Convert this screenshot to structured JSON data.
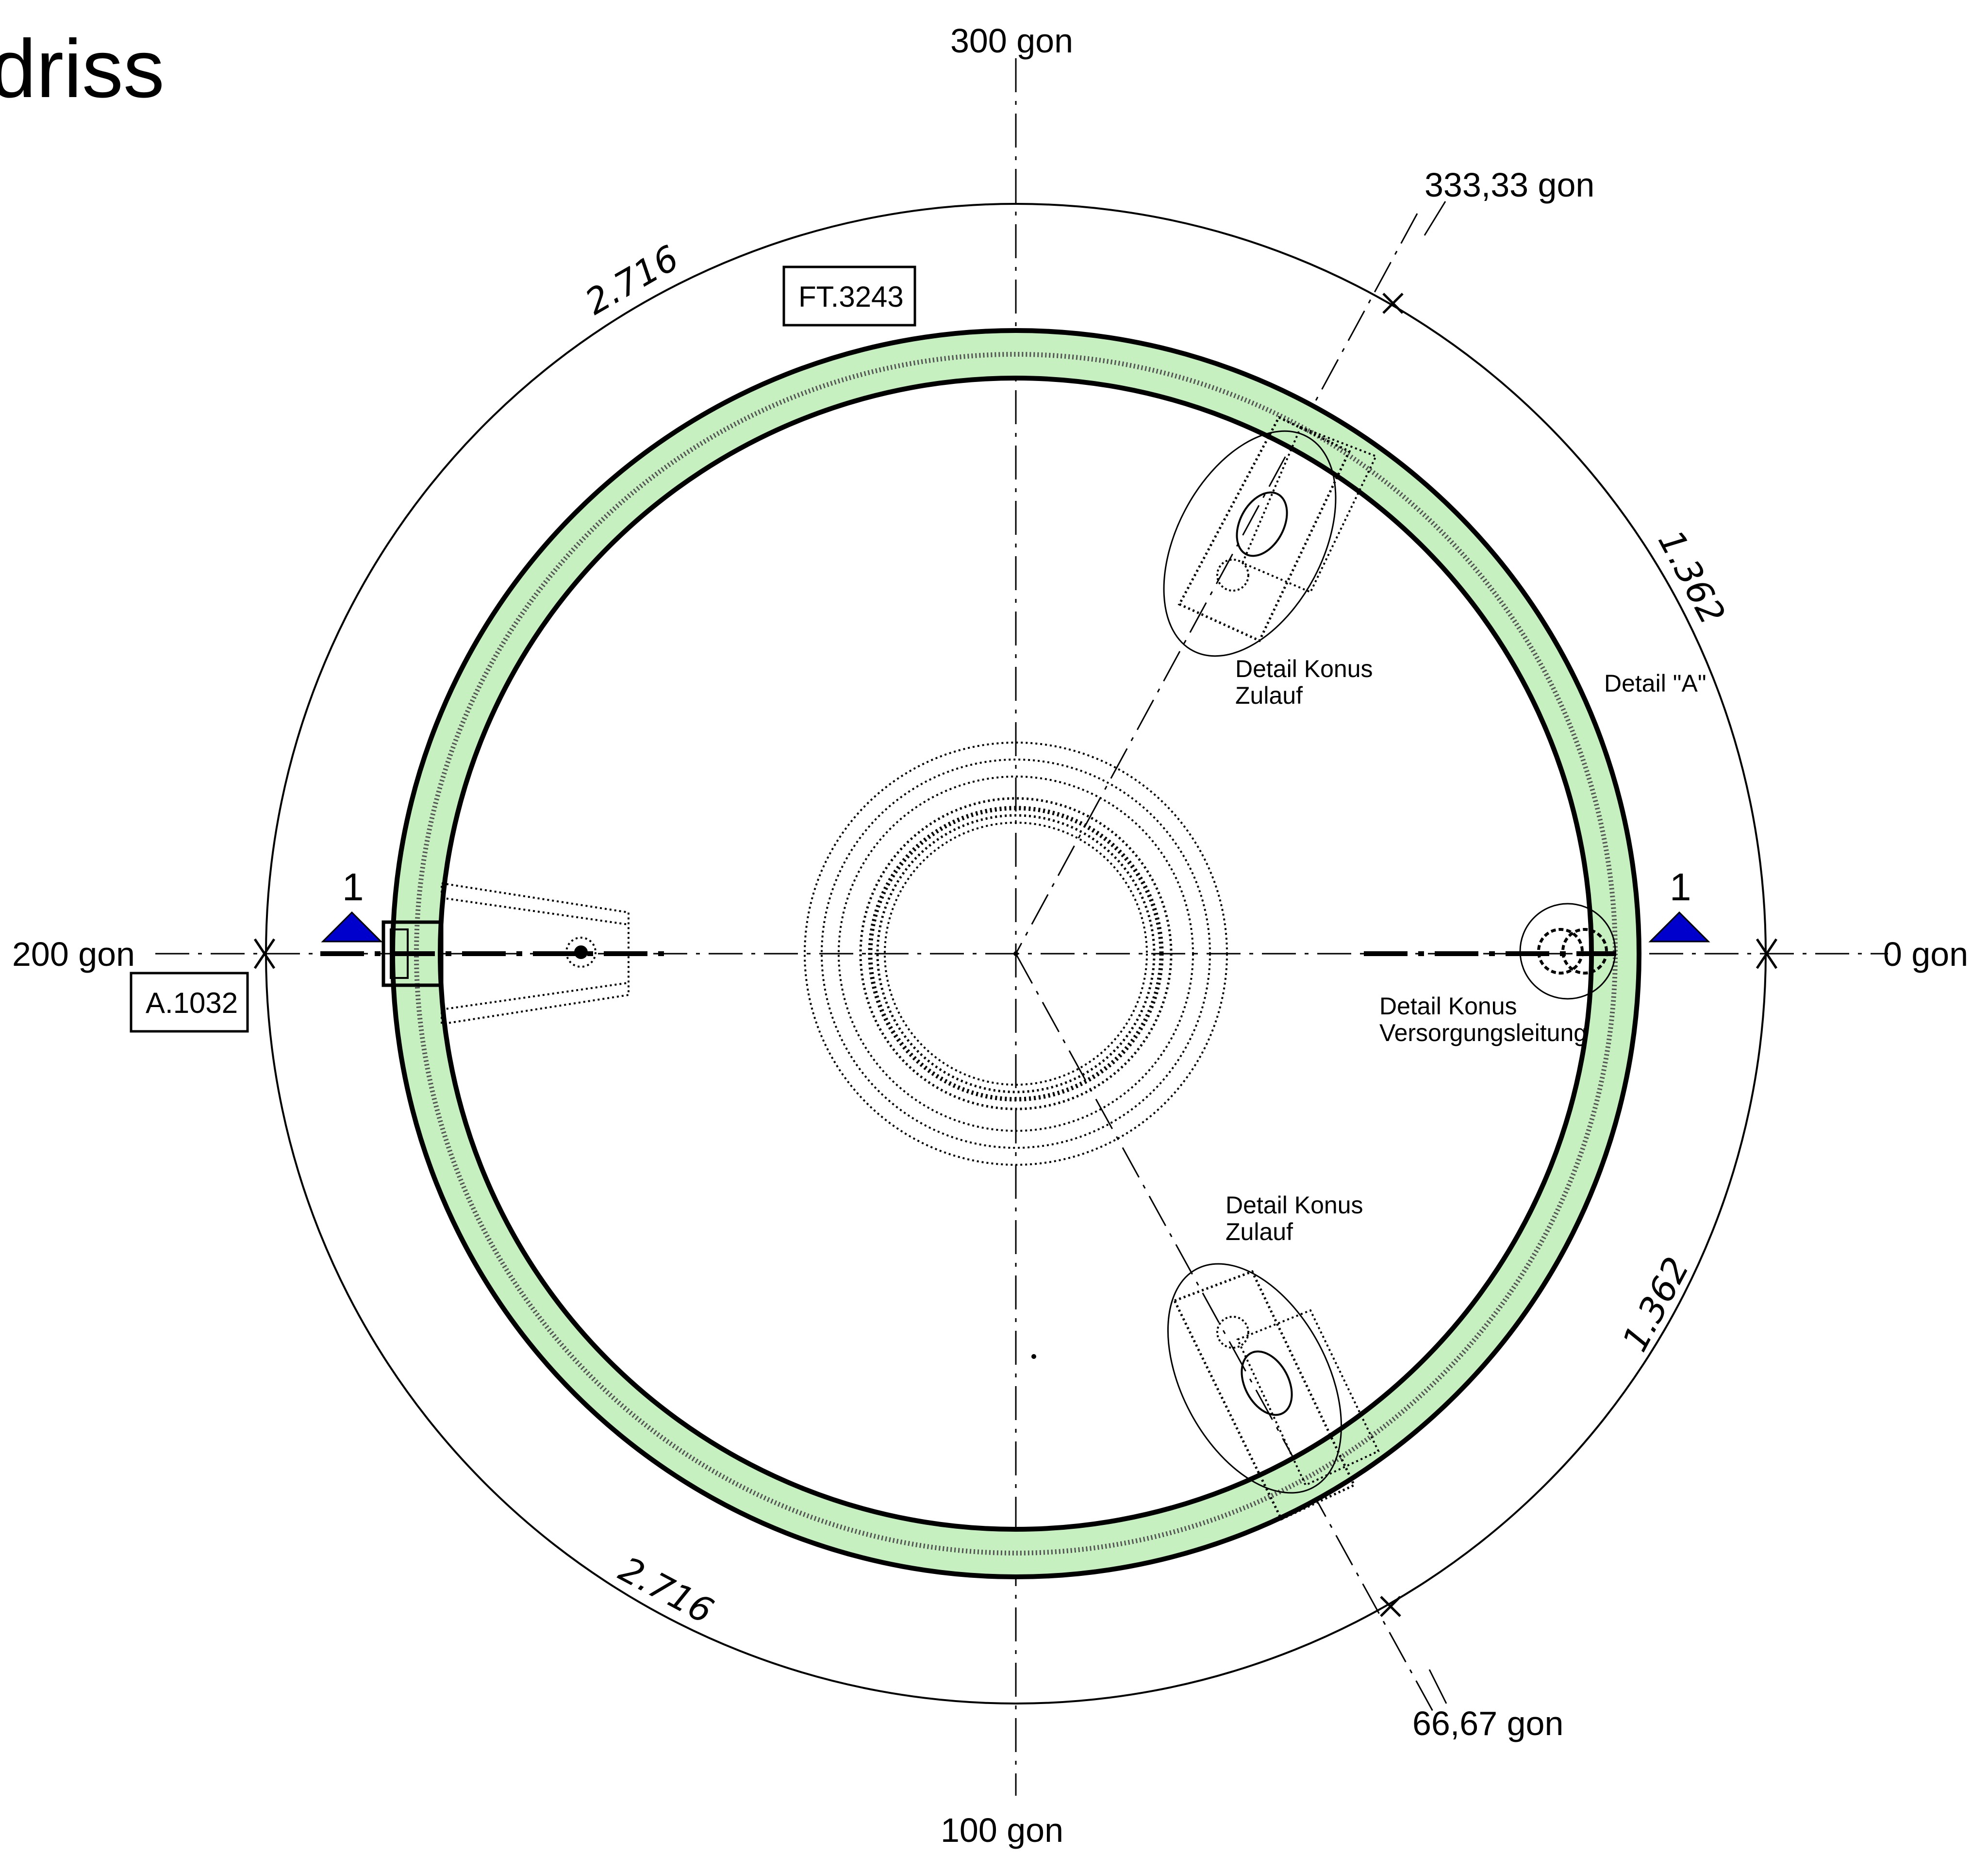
{
  "title": "driss",
  "angles": {
    "top": "300 gon",
    "bottom": "100 gon",
    "left": "200 gon",
    "right": "0 gon",
    "upper_right": "333,33 gon",
    "lower_right": "66,67 gon"
  },
  "tags": {
    "upper": "FT.3243",
    "left": "A.1032"
  },
  "dimensions": {
    "upper_left_arc": "2.716",
    "lower_left_arc": "2.716",
    "upper_right_arc": "1.362",
    "lower_right_arc": "1.362"
  },
  "annotations": {
    "detail_upper_line1": "Detail Konus",
    "detail_upper_line2": "Zulauf",
    "detail_a": "Detail \"A\"",
    "detail_supply_line1": "Detail Konus",
    "detail_supply_line2": "Versorgungsleitung",
    "detail_lower_line1": "Detail Konus",
    "detail_lower_line2": "Zulauf"
  },
  "section_marks": {
    "left": "1",
    "right": "1"
  },
  "colors": {
    "ring_fill": "#c6f0c0",
    "ring_stroke": "#000000",
    "section_marker": "#0000cc"
  }
}
